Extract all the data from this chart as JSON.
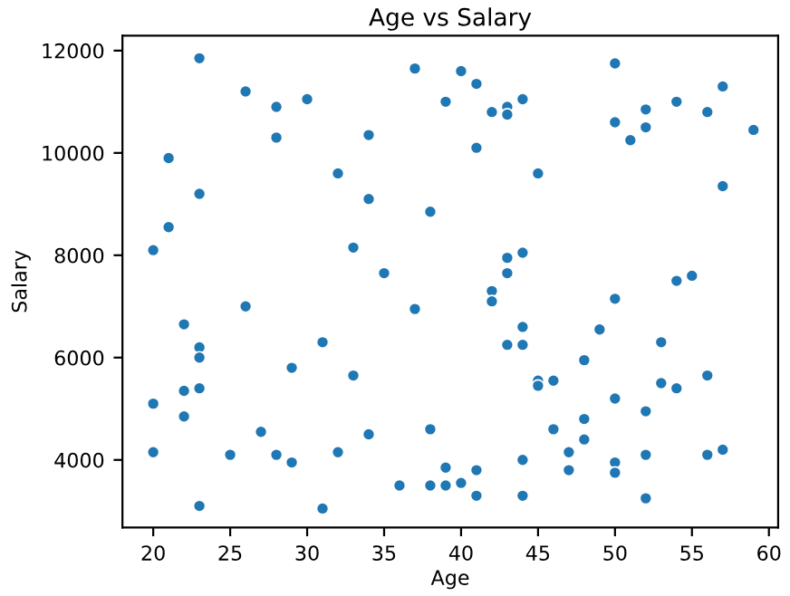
{
  "chart_data": {
    "type": "scatter",
    "title": "Age vs Salary",
    "xlabel": "Age",
    "ylabel": "Salary",
    "xlim": [
      18.0,
      60.6
    ],
    "ylim": [
      2680,
      12290
    ],
    "xticks": [
      20,
      25,
      30,
      35,
      40,
      45,
      50,
      55,
      60
    ],
    "yticks": [
      4000,
      6000,
      8000,
      10000,
      12000
    ],
    "grid": false,
    "marker": "circle",
    "series": [
      {
        "color": "#1f77b4",
        "x": [
          20,
          20,
          20,
          21,
          21,
          22,
          22,
          22,
          23,
          23,
          23,
          23,
          23,
          23,
          25,
          26,
          26,
          27,
          28,
          28,
          28,
          29,
          29,
          30,
          31,
          31,
          32,
          32,
          33,
          33,
          34,
          34,
          34,
          35,
          36,
          37,
          37,
          38,
          38,
          38,
          39,
          39,
          39,
          40,
          40,
          41,
          41,
          41,
          41,
          42,
          42,
          42,
          43,
          43,
          43,
          43,
          43,
          44,
          44,
          44,
          44,
          44,
          44,
          45,
          45,
          45,
          46,
          46,
          47,
          47,
          48,
          48,
          48,
          49,
          50,
          50,
          50,
          50,
          50,
          50,
          51,
          52,
          52,
          52,
          52,
          52,
          53,
          53,
          54,
          54,
          54,
          55,
          56,
          56,
          56,
          57,
          57,
          57,
          59
        ],
        "values": [
          8100,
          5100,
          4150,
          9900,
          8550,
          6650,
          5350,
          4850,
          11850,
          9200,
          6200,
          6000,
          5400,
          3100,
          4100,
          11200,
          7000,
          4550,
          10900,
          10300,
          4100,
          5800,
          3950,
          11050,
          6300,
          3050,
          9600,
          4150,
          8150,
          5650,
          10350,
          9100,
          4500,
          7650,
          3500,
          11650,
          6950,
          8850,
          4600,
          3500,
          11000,
          3850,
          3500,
          11600,
          3550,
          11350,
          10100,
          3800,
          3300,
          10800,
          7300,
          7100,
          10900,
          10750,
          7950,
          7650,
          6250,
          11050,
          8050,
          6600,
          6250,
          4000,
          3300,
          9600,
          5550,
          5450,
          5550,
          4600,
          4150,
          3800,
          5950,
          4800,
          4400,
          6550,
          11750,
          10600,
          7150,
          5200,
          3950,
          3750,
          10250,
          10850,
          10500,
          4950,
          4100,
          3250,
          6300,
          5500,
          11000,
          7500,
          5400,
          7600,
          10800,
          5650,
          4100,
          11300,
          9350,
          4200,
          10450
        ]
      }
    ]
  }
}
